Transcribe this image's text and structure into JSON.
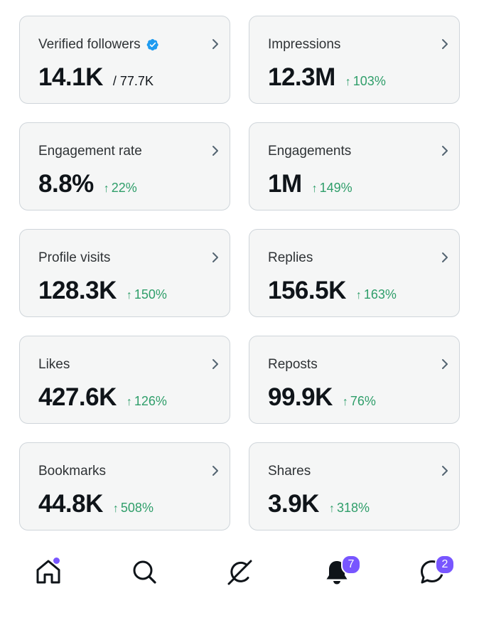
{
  "metrics": [
    {
      "label": "Verified followers",
      "value": "14.1K",
      "sub": "/ 77.7K",
      "verified": true
    },
    {
      "label": "Impressions",
      "value": "12.3M",
      "change": "103%"
    },
    {
      "label": "Engagement rate",
      "value": "8.8%",
      "change": "22%"
    },
    {
      "label": "Engagements",
      "value": "1M",
      "change": "149%"
    },
    {
      "label": "Profile visits",
      "value": "128.3K",
      "change": "150%"
    },
    {
      "label": "Replies",
      "value": "156.5K",
      "change": "163%"
    },
    {
      "label": "Likes",
      "value": "427.6K",
      "change": "126%"
    },
    {
      "label": "Reposts",
      "value": "99.9K",
      "change": "76%"
    },
    {
      "label": "Bookmarks",
      "value": "44.8K",
      "change": "508%"
    },
    {
      "label": "Shares",
      "value": "3.9K",
      "change": "318%"
    }
  ],
  "change_arrow": "↑",
  "colors": {
    "positive": "#2f9e6a",
    "verified": "#1d9bf0",
    "badge": "#7856ff",
    "card_bg": "#f5f6f6",
    "card_border": "#cfd5da"
  },
  "nav": {
    "items": [
      {
        "icon": "home-icon",
        "indicator": "dot"
      },
      {
        "icon": "search-icon"
      },
      {
        "icon": "grok-icon"
      },
      {
        "icon": "bell-icon",
        "badge": "7"
      },
      {
        "icon": "messages-icon",
        "badge": "2"
      }
    ]
  }
}
